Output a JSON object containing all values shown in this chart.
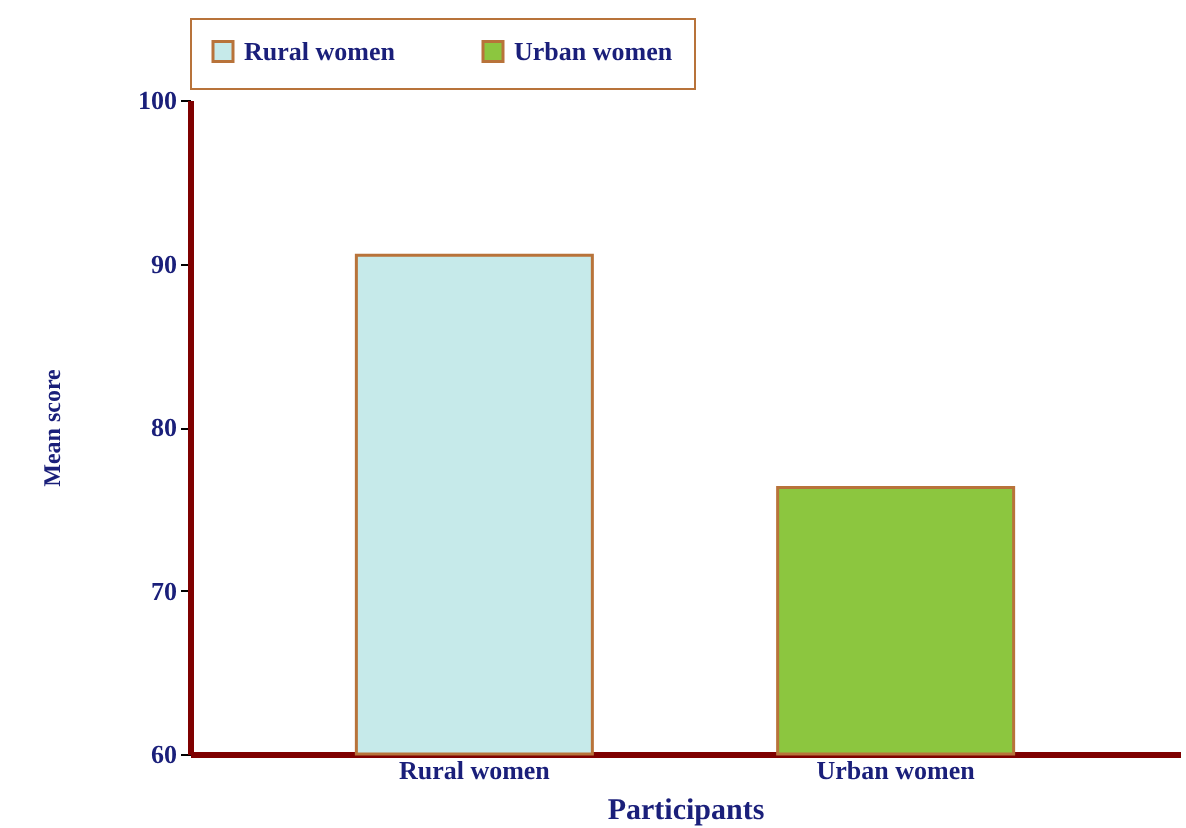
{
  "chart_data": {
    "type": "bar",
    "xlabel": "Participants",
    "ylabel": "Mean score",
    "categories": [
      "Rural women",
      "Urban women"
    ],
    "series": [
      {
        "name": "Rural women",
        "color": "#c6eaea",
        "values": [
          90.5,
          null
        ]
      },
      {
        "name": "Urban women",
        "color": "#8cc63f",
        "values": [
          null,
          76.3
        ]
      }
    ],
    "ylim": [
      60,
      100
    ],
    "yticks": [
      60,
      70,
      80,
      90,
      100
    ],
    "grid": false,
    "legend": "top"
  }
}
